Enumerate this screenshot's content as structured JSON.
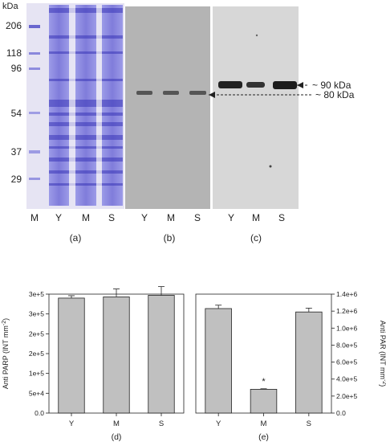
{
  "gel": {
    "kda_header": "kDa",
    "markers": [
      "206",
      "118",
      "96",
      "54",
      "37",
      "29"
    ],
    "lanes_a": [
      "M",
      "Y",
      "M",
      "S"
    ],
    "lanes_b": [
      "Y",
      "M",
      "S"
    ],
    "lanes_c": [
      "Y",
      "M",
      "S"
    ],
    "panel_a": "(a)",
    "panel_b": "(b)",
    "panel_c": "(c)",
    "band_90": "~ 90 kDa",
    "band_80": "~ 80 kDa"
  },
  "chart_data": [
    {
      "type": "bar",
      "panel": "(d)",
      "categories": [
        "Y",
        "M",
        "S"
      ],
      "values": [
        290000,
        293000,
        297000
      ],
      "errors": [
        6000,
        20000,
        22000
      ],
      "ylabel": "Anti PARP (INT mm-2)",
      "ylim": [
        0,
        300000
      ],
      "yticks": [
        "0.0",
        "5e+4",
        "1e+5",
        "2e+5",
        "2e+5",
        "3e+5",
        "3e+5"
      ],
      "bar_color": "#c0c0c0",
      "grid": false
    },
    {
      "type": "bar",
      "panel": "(e)",
      "categories": [
        "Y",
        "M",
        "S"
      ],
      "values": [
        1230000,
        280000,
        1190000
      ],
      "errors": [
        40000,
        6000,
        45000
      ],
      "annotations": [
        "",
        "*",
        ""
      ],
      "ylabel": "Anti PAR (INT mm-2)",
      "ylim": [
        0,
        1400000
      ],
      "yticks": [
        "0.0",
        "2.0e+5",
        "4.0e+5",
        "6.0e+5",
        "8.0e+5",
        "1.0e+6",
        "1.2e+6",
        "1.4e+6"
      ],
      "bar_color": "#c0c0c0",
      "grid": false
    }
  ]
}
